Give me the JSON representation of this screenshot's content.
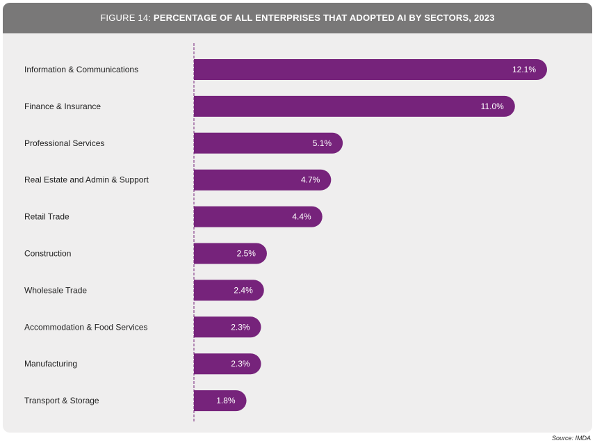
{
  "figure": {
    "prefix": "FIGURE 14: ",
    "title": "PERCENTAGE OF ALL ENTERPRISES THAT ADOPTED AI BY SECTORS, 2023"
  },
  "source": "Source: IMDA",
  "colors": {
    "bar": "#76237b",
    "axis_line": "#76237b",
    "label_text": "#222222",
    "value_text": "#ffffff"
  },
  "chart_data": {
    "type": "bar",
    "orientation": "horizontal",
    "categories": [
      "Information & Communications",
      "Finance & Insurance",
      "Professional Services",
      "Real Estate and Admin & Support",
      "Retail Trade",
      "Construction",
      "Wholesale Trade",
      "Accommodation & Food Services",
      "Manufacturing",
      "Transport & Storage"
    ],
    "values": [
      12.1,
      11.0,
      5.1,
      4.7,
      4.4,
      2.5,
      2.4,
      2.3,
      2.3,
      1.8
    ],
    "data_labels": [
      "12.1%",
      "11.0%",
      "5.1%",
      "4.7%",
      "4.4%",
      "2.5%",
      "2.4%",
      "2.3%",
      "2.3%",
      "1.8%"
    ],
    "xlim": [
      0,
      12.1
    ],
    "grid": false,
    "legend": "none"
  }
}
